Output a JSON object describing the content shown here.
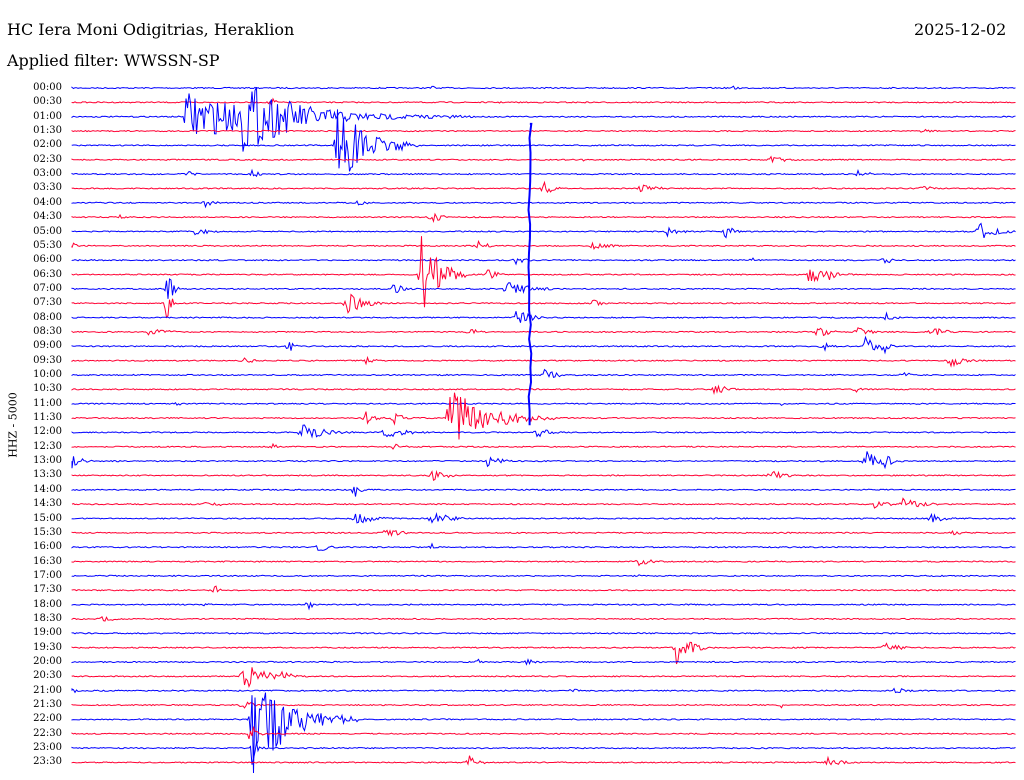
{
  "header": {
    "station": "HC Iera Moni Odigitrias, Heraklion",
    "date": "2025-12-02",
    "filter_label": "Applied filter: WWSSN-SP"
  },
  "axis": {
    "channel_label": "HHZ - 5000"
  },
  "colors": {
    "trace_a": "#0000ff",
    "trace_b": "#ff0033",
    "background": "#ffffff"
  },
  "rows": [
    {
      "label": "00:00",
      "events": [
        [
          0.38,
          3,
          1.5
        ],
        [
          0.7,
          3,
          1.5
        ]
      ]
    },
    {
      "label": "00:30",
      "events": [
        [
          0.21,
          8,
          1
        ],
        [
          0.45,
          2,
          1
        ]
      ]
    },
    {
      "label": "01:00",
      "events": [
        [
          0.12,
          25,
          22
        ],
        [
          0.18,
          40,
          12
        ],
        [
          0.4,
          3,
          1
        ]
      ]
    },
    {
      "label": "01:30",
      "events": [
        [
          0.9,
          4,
          2
        ],
        [
          0.2,
          2,
          1
        ]
      ]
    },
    {
      "label": "02:00",
      "events": [
        [
          0.28,
          45,
          6
        ],
        [
          0.34,
          10,
          3
        ]
      ]
    },
    {
      "label": "02:30",
      "events": [
        [
          0.74,
          4,
          4
        ],
        [
          0.54,
          2,
          1
        ]
      ]
    },
    {
      "label": "03:00",
      "events": [
        [
          0.12,
          4,
          2
        ],
        [
          0.19,
          4,
          2
        ],
        [
          0.83,
          5,
          3
        ]
      ]
    },
    {
      "label": "03:30",
      "events": [
        [
          0.5,
          8,
          2
        ],
        [
          0.6,
          5,
          4
        ],
        [
          0.9,
          5,
          2
        ]
      ]
    },
    {
      "label": "04:00",
      "events": [
        [
          0.14,
          5,
          2
        ],
        [
          0.3,
          3,
          3
        ]
      ]
    },
    {
      "label": "04:30",
      "events": [
        [
          0.05,
          3,
          1
        ],
        [
          0.38,
          8,
          2
        ]
      ]
    },
    {
      "label": "05:00",
      "events": [
        [
          0.13,
          5,
          3
        ],
        [
          0.63,
          5,
          3
        ],
        [
          0.69,
          10,
          2
        ],
        [
          0.96,
          10,
          4
        ]
      ]
    },
    {
      "label": "05:30",
      "events": [
        [
          0.0,
          4,
          1
        ],
        [
          0.43,
          6,
          2
        ],
        [
          0.55,
          6,
          3
        ]
      ]
    },
    {
      "label": "06:00",
      "events": [
        [
          0.47,
          5,
          2
        ],
        [
          0.72,
          4,
          1
        ],
        [
          0.86,
          5,
          2
        ]
      ]
    },
    {
      "label": "06:30",
      "events": [
        [
          0.37,
          40,
          4
        ],
        [
          0.44,
          8,
          2
        ],
        [
          0.78,
          10,
          4
        ],
        [
          0.8,
          8,
          2
        ]
      ]
    },
    {
      "label": "07:00",
      "events": [
        [
          0.1,
          30,
          1
        ],
        [
          0.34,
          8,
          2
        ],
        [
          0.46,
          8,
          5
        ]
      ]
    },
    {
      "label": "07:30",
      "events": [
        [
          0.1,
          20,
          1
        ],
        [
          0.29,
          12,
          4
        ],
        [
          0.55,
          5,
          2
        ]
      ]
    },
    {
      "label": "08:00",
      "events": [
        [
          0.47,
          10,
          3
        ],
        [
          0.86,
          6,
          2
        ]
      ]
    },
    {
      "label": "08:30",
      "events": [
        [
          0.08,
          5,
          4
        ],
        [
          0.42,
          6,
          2
        ],
        [
          0.79,
          10,
          2
        ],
        [
          0.83,
          6,
          3
        ],
        [
          0.91,
          5,
          4
        ]
      ]
    },
    {
      "label": "09:00",
      "events": [
        [
          0.23,
          8,
          1
        ],
        [
          0.79,
          10,
          2
        ],
        [
          0.84,
          12,
          2
        ],
        [
          0.86,
          14,
          1
        ]
      ]
    },
    {
      "label": "09:30",
      "events": [
        [
          0.18,
          5,
          2
        ],
        [
          0.31,
          5,
          2
        ],
        [
          0.93,
          8,
          3
        ]
      ]
    },
    {
      "label": "10:00",
      "events": [
        [
          0.5,
          6,
          3
        ],
        [
          0.88,
          4,
          2
        ]
      ]
    },
    {
      "label": "10:30",
      "events": [
        [
          0.68,
          6,
          3
        ],
        [
          0.83,
          4,
          1
        ]
      ]
    },
    {
      "label": "11:00",
      "events": [
        [
          0.11,
          4,
          1
        ],
        [
          0.75,
          4,
          1
        ]
      ]
    },
    {
      "label": "11:30",
      "events": [
        [
          0.4,
          35,
          8
        ],
        [
          0.31,
          8,
          2
        ],
        [
          0.34,
          8,
          2
        ]
      ]
    },
    {
      "label": "12:00",
      "events": [
        [
          0.24,
          10,
          5
        ],
        [
          0.33,
          6,
          5
        ],
        [
          0.49,
          6,
          3
        ]
      ]
    },
    {
      "label": "12:30",
      "events": [
        [
          0.21,
          4,
          2
        ],
        [
          0.34,
          4,
          2
        ]
      ]
    },
    {
      "label": "13:00",
      "events": [
        [
          0.0,
          8,
          2
        ],
        [
          0.44,
          6,
          3
        ],
        [
          0.84,
          12,
          3
        ],
        [
          0.86,
          8,
          2
        ]
      ]
    },
    {
      "label": "13:30",
      "events": [
        [
          0.38,
          8,
          3
        ],
        [
          0.74,
          6,
          3
        ]
      ]
    },
    {
      "label": "14:00",
      "events": [
        [
          0.3,
          10,
          1
        ]
      ]
    },
    {
      "label": "14:30",
      "events": [
        [
          0.14,
          6,
          3
        ],
        [
          0.85,
          5,
          3
        ],
        [
          0.88,
          7,
          4
        ]
      ]
    },
    {
      "label": "15:00",
      "events": [
        [
          0.3,
          8,
          4
        ],
        [
          0.38,
          12,
          3
        ],
        [
          0.91,
          5,
          3
        ]
      ]
    },
    {
      "label": "15:30",
      "events": [
        [
          0.33,
          5,
          4
        ],
        [
          0.93,
          6,
          2
        ]
      ]
    },
    {
      "label": "16:00",
      "events": [
        [
          0.26,
          5,
          3
        ],
        [
          0.38,
          5,
          1
        ]
      ]
    },
    {
      "label": "16:30",
      "events": [
        [
          0.6,
          5,
          3
        ]
      ]
    },
    {
      "label": "17:00",
      "events": [
        [
          0.6,
          3,
          1
        ]
      ]
    },
    {
      "label": "17:30",
      "events": [
        [
          0.15,
          8,
          1
        ]
      ]
    },
    {
      "label": "18:00",
      "events": [
        [
          0.14,
          4,
          1
        ],
        [
          0.25,
          6,
          1
        ]
      ]
    },
    {
      "label": "18:30",
      "events": [
        [
          0.03,
          4,
          3
        ]
      ]
    },
    {
      "label": "19:00",
      "events": [
        [
          0.6,
          2,
          1
        ]
      ]
    },
    {
      "label": "19:30",
      "events": [
        [
          0.64,
          18,
          3
        ],
        [
          0.86,
          8,
          3
        ]
      ]
    },
    {
      "label": "20:00",
      "events": [
        [
          0.43,
          4,
          1
        ],
        [
          0.48,
          4,
          2
        ]
      ]
    },
    {
      "label": "20:30",
      "events": [
        [
          0.18,
          15,
          5
        ],
        [
          0.22,
          6,
          3
        ]
      ]
    },
    {
      "label": "21:00",
      "events": [
        [
          0.0,
          4,
          1
        ],
        [
          0.53,
          4,
          1
        ],
        [
          0.87,
          4,
          3
        ]
      ]
    },
    {
      "label": "21:30",
      "events": [
        [
          0.18,
          8,
          2
        ],
        [
          0.75,
          4,
          1
        ]
      ]
    },
    {
      "label": "22:00",
      "events": [
        [
          0.19,
          60,
          8
        ]
      ]
    },
    {
      "label": "22:30",
      "events": [
        [
          0.19,
          20,
          1
        ]
      ]
    },
    {
      "label": "23:00",
      "events": [
        [
          0.19,
          20,
          1
        ]
      ]
    },
    {
      "label": "23:30",
      "events": [
        [
          0.42,
          8,
          2
        ],
        [
          0.8,
          6,
          3
        ]
      ]
    }
  ]
}
